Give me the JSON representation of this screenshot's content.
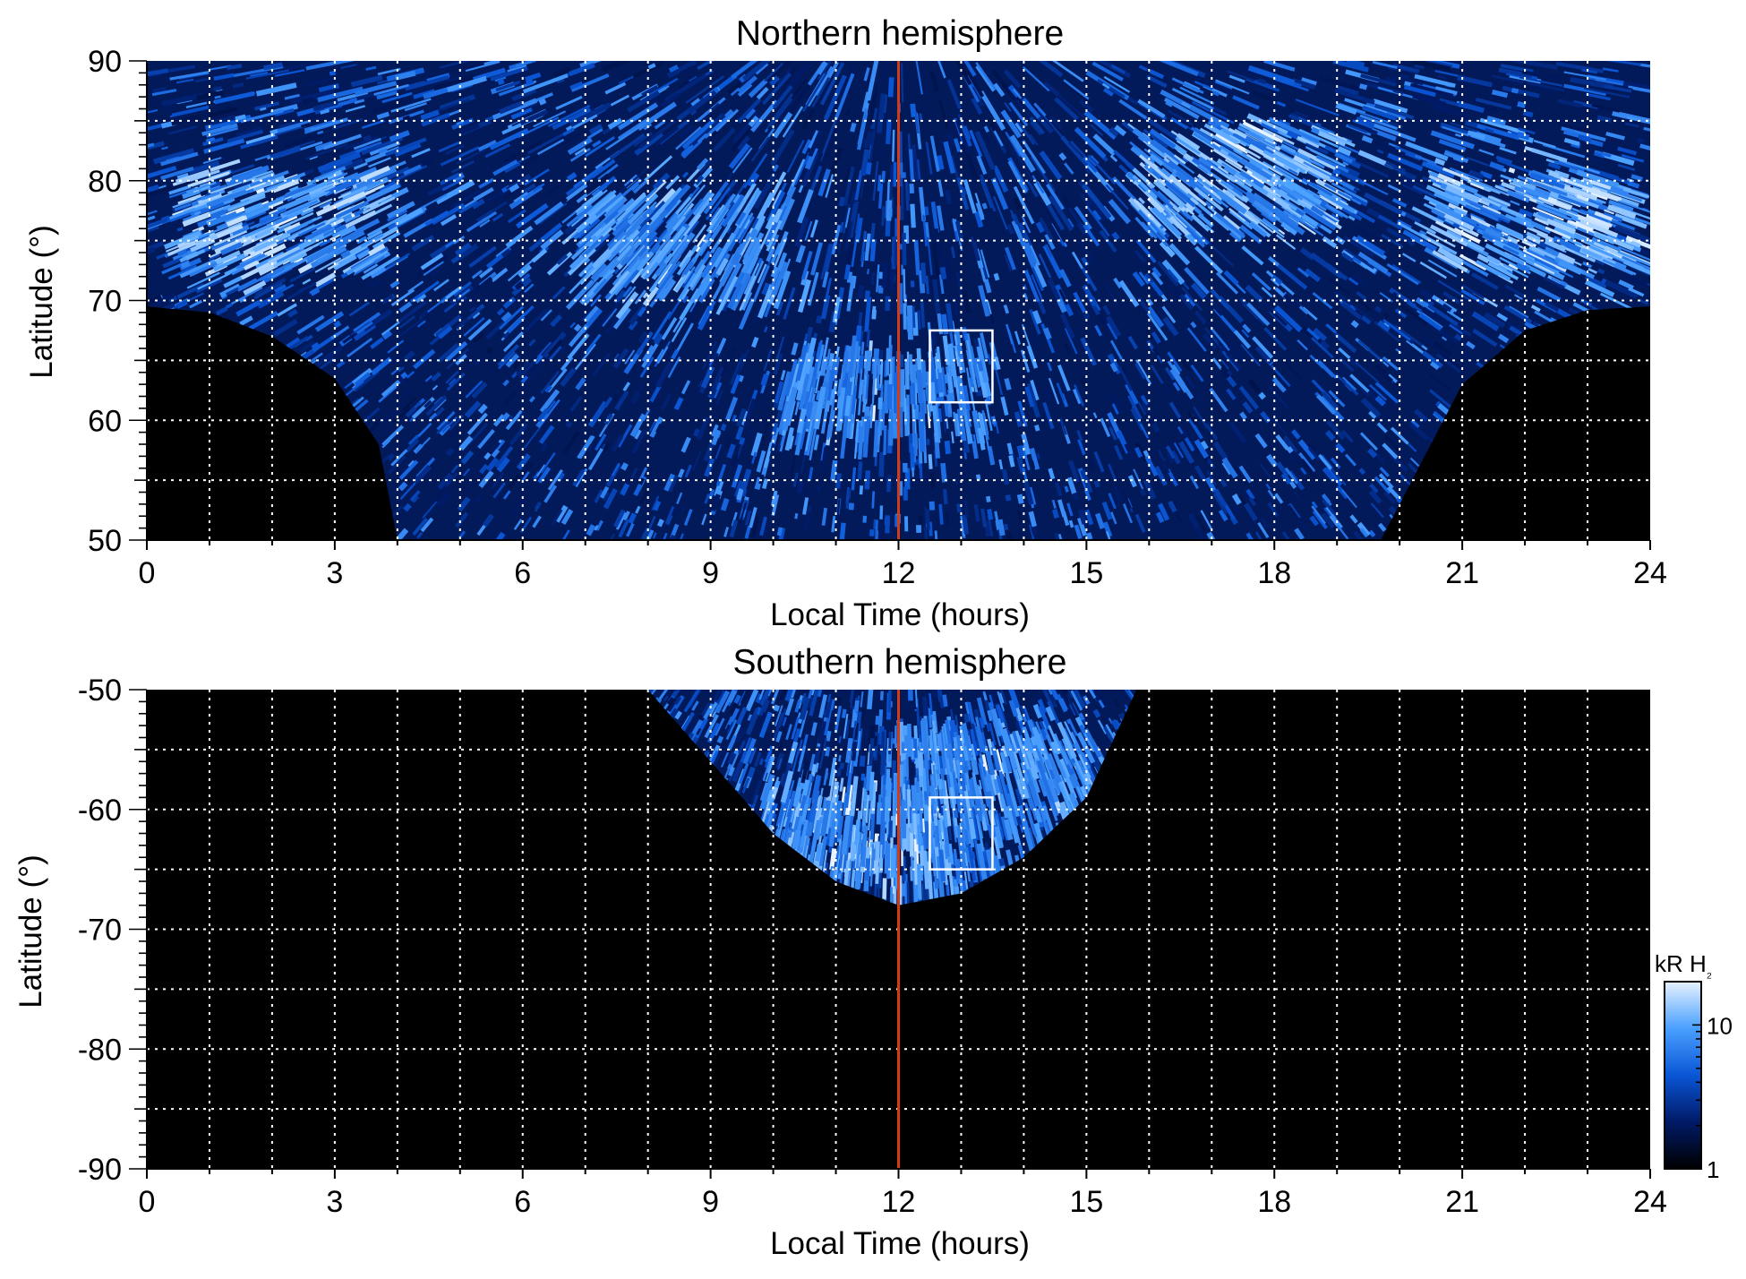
{
  "chart_data": [
    {
      "type": "heatmap",
      "title": "Northern hemisphere",
      "xlabel": "Local Time (hours)",
      "ylabel": "Latitude (°)",
      "xlim": [
        0,
        24
      ],
      "ylim": [
        50,
        90
      ],
      "x_ticks": [
        0,
        3,
        6,
        9,
        12,
        15,
        18,
        21,
        24
      ],
      "y_ticks": [
        50,
        60,
        70,
        80,
        90
      ],
      "grid": true,
      "noon_line_local_time": 12,
      "box": {
        "x": [
          12.5,
          13.5
        ],
        "y": [
          61.5,
          67.5
        ]
      },
      "coverage_boundary": [
        {
          "x": 0,
          "y": 69.5
        },
        {
          "x": 1,
          "y": 69
        },
        {
          "x": 2,
          "y": 67
        },
        {
          "x": 3,
          "y": 63.5
        },
        {
          "x": 3.7,
          "y": 58
        },
        {
          "x": 4,
          "y": 50
        },
        {
          "x": 19.7,
          "y": 50
        },
        {
          "x": 20.3,
          "y": 56
        },
        {
          "x": 21,
          "y": 63
        },
        {
          "x": 22,
          "y": 67.5
        },
        {
          "x": 23,
          "y": 69.2
        },
        {
          "x": 24,
          "y": 69.5
        }
      ],
      "bright_regions": [
        {
          "x": 2.2,
          "y": 76.5,
          "level": 0.9
        },
        {
          "x": 22.2,
          "y": 76.5,
          "level": 0.95
        },
        {
          "x": 17.5,
          "y": 80,
          "level": 0.8
        },
        {
          "x": 8.5,
          "y": 74.5,
          "level": 0.6
        },
        {
          "x": 11.8,
          "y": 62,
          "level": 0.5
        }
      ]
    },
    {
      "type": "heatmap",
      "title": "Southern hemisphere",
      "xlabel": "Local Time (hours)",
      "ylabel": "Latitude (°)",
      "xlim": [
        0,
        24
      ],
      "ylim": [
        -90,
        -50
      ],
      "x_ticks": [
        0,
        3,
        6,
        9,
        12,
        15,
        18,
        21,
        24
      ],
      "y_ticks": [
        -90,
        -80,
        -70,
        -60,
        -50
      ],
      "grid": true,
      "noon_line_local_time": 12,
      "box": {
        "x": [
          12.5,
          13.5
        ],
        "y": [
          -65,
          -59
        ]
      },
      "coverage_boundary": [
        {
          "x": 8,
          "y": -50
        },
        {
          "x": 9,
          "y": -56
        },
        {
          "x": 10,
          "y": -62
        },
        {
          "x": 11,
          "y": -66
        },
        {
          "x": 12,
          "y": -68
        },
        {
          "x": 13,
          "y": -67
        },
        {
          "x": 14,
          "y": -64
        },
        {
          "x": 15,
          "y": -59
        },
        {
          "x": 15.8,
          "y": -50
        }
      ],
      "bright_regions": [
        {
          "x": 11.5,
          "y": -62,
          "level": 0.7
        },
        {
          "x": 13.6,
          "y": -58,
          "level": 0.55
        }
      ],
      "colorbar": {
        "label_main": "kR H",
        "label_sub": "₂",
        "ticks": [
          1,
          10
        ],
        "range": [
          1,
          20
        ],
        "scale": "log",
        "colors": [
          "#000000",
          "#001a66",
          "#0a56d6",
          "#4aa0ff",
          "#e6f2ff"
        ]
      }
    }
  ]
}
